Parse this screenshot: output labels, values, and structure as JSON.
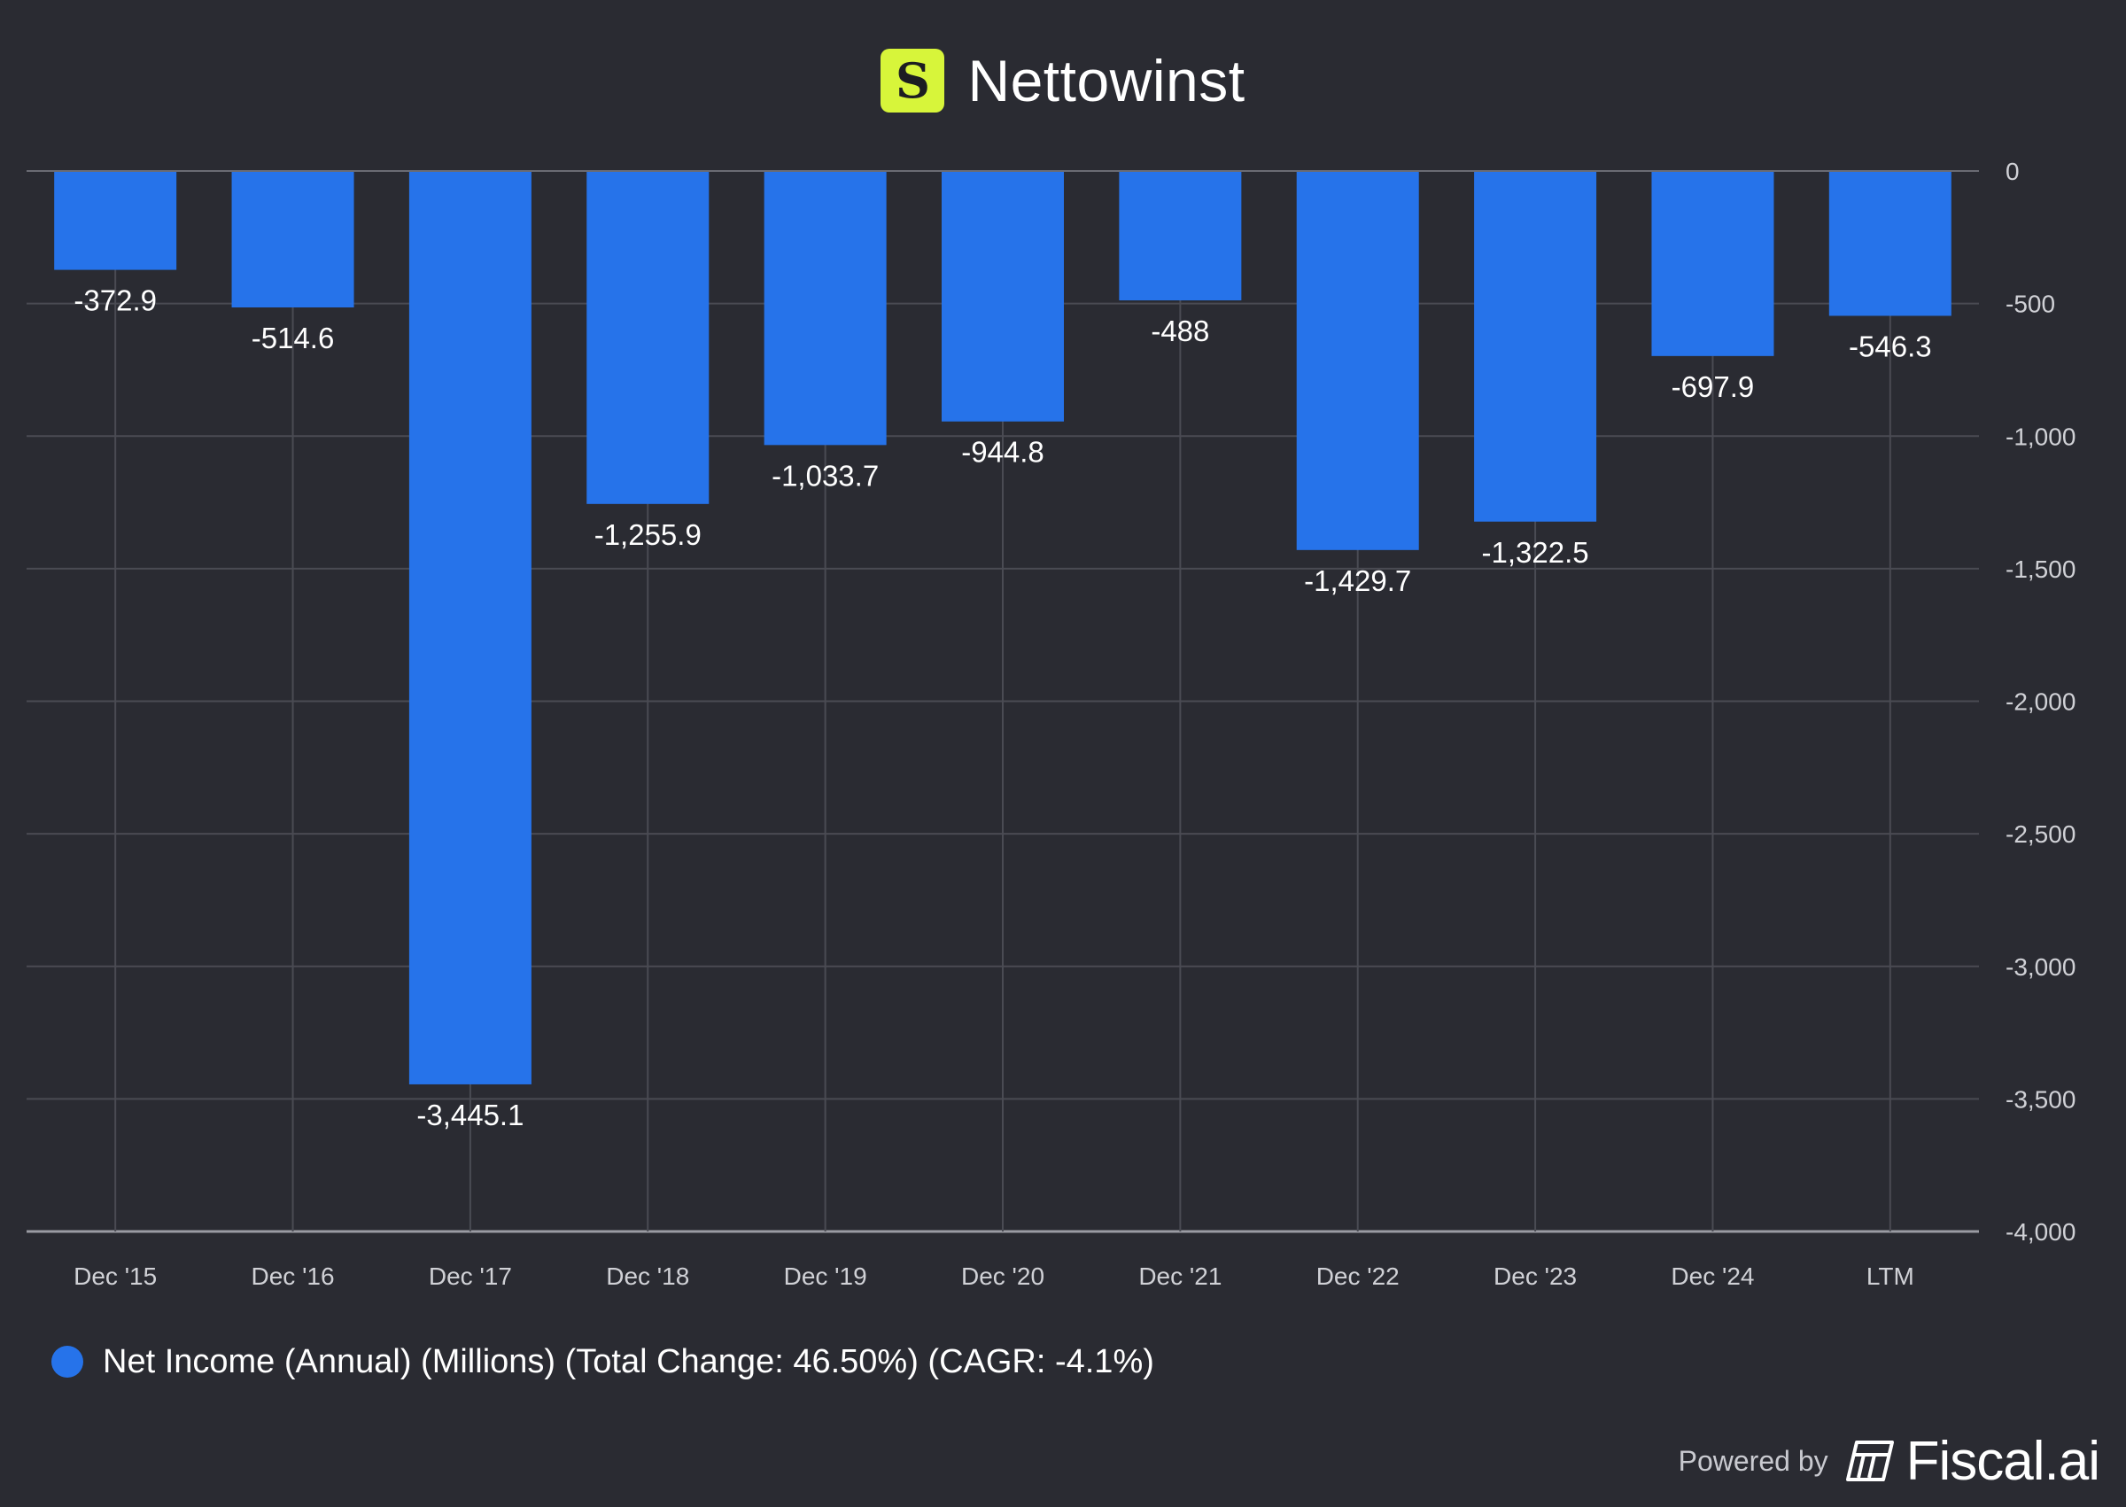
{
  "header": {
    "logo_letter": "S",
    "title": "Nettowinst"
  },
  "chart_data": {
    "type": "bar",
    "title": "Nettowinst",
    "categories": [
      "Dec '15",
      "Dec '16",
      "Dec '17",
      "Dec '18",
      "Dec '19",
      "Dec '20",
      "Dec '21",
      "Dec '22",
      "Dec '23",
      "Dec '24",
      "LTM"
    ],
    "values": [
      -372.9,
      -514.6,
      -3445.1,
      -1255.9,
      -1033.7,
      -944.8,
      -488,
      -1429.7,
      -1322.5,
      -697.9,
      -546.3
    ],
    "value_labels": [
      "-372.9",
      "-514.6",
      "-3,445.1",
      "-1,255.9",
      "-1,033.7",
      "-944.8",
      "-488",
      "-1,429.7",
      "-1,322.5",
      "-697.9",
      "-546.3"
    ],
    "ylim": [
      -4000,
      0
    ],
    "yticks": [
      0,
      -500,
      -1000,
      -1500,
      -2000,
      -2500,
      -3000,
      -3500,
      -4000
    ],
    "ytick_labels": [
      "0",
      "-500",
      "-1,000",
      "-1,500",
      "-2,000",
      "-2,500",
      "-3,000",
      "-3,500",
      "-4,000"
    ],
    "yaxis_side": "right",
    "grid": true,
    "bar_color": "#2673ea",
    "series_name": "Net Income (Annual) (Millions) (Total Change: 46.50%) (CAGR: -4.1%)",
    "legend_position": "bottom-left"
  },
  "legend": {
    "label": "Net Income (Annual) (Millions) (Total Change: 46.50%) (CAGR: -4.1%)",
    "color": "#2673ea"
  },
  "footer": {
    "powered_by": "Powered by",
    "brand": "Fiscal.ai"
  }
}
